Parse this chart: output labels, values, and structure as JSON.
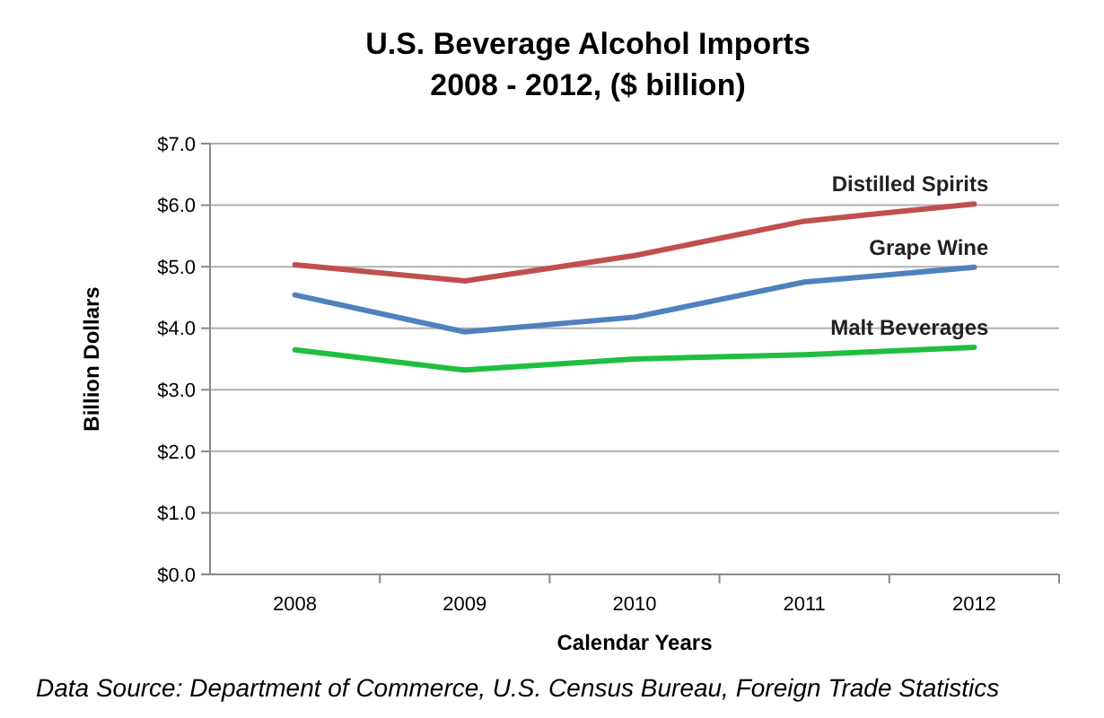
{
  "chart_data": {
    "type": "line",
    "title": "U.S. Beverage Alcohol Imports",
    "subtitle": "2008 - 2012, ($ billion)",
    "xlabel": "Calendar Years",
    "ylabel": "Billion Dollars",
    "categories": [
      "2008",
      "2009",
      "2010",
      "2011",
      "2012"
    ],
    "series": [
      {
        "name": "Distilled Spirits",
        "color": "#c0504d",
        "values": [
          5.03,
          4.77,
          5.18,
          5.74,
          6.02
        ]
      },
      {
        "name": "Grape Wine",
        "color": "#4f81bd",
        "values": [
          4.54,
          3.94,
          4.18,
          4.75,
          4.99
        ]
      },
      {
        "name": "Malt Beverages",
        "color": "#1fbf3f",
        "values": [
          3.65,
          3.32,
          3.5,
          3.57,
          3.69
        ]
      }
    ],
    "ylim": [
      0,
      7
    ],
    "yticks": [
      {
        "value": 0,
        "label": "$0.0"
      },
      {
        "value": 1,
        "label": "$1.0"
      },
      {
        "value": 2,
        "label": "$2.0"
      },
      {
        "value": 3,
        "label": "$3.0"
      },
      {
        "value": 4,
        "label": "$4.0"
      },
      {
        "value": 5,
        "label": "$5.0"
      },
      {
        "value": 6,
        "label": "$6.0"
      },
      {
        "value": 7,
        "label": "$7.0"
      }
    ],
    "grid": "y",
    "marker": "none",
    "line_style": "solid",
    "annotations": [
      "Data Source: Department of Commerce, U.S. Census Bureau, Foreign Trade Statistics"
    ]
  }
}
